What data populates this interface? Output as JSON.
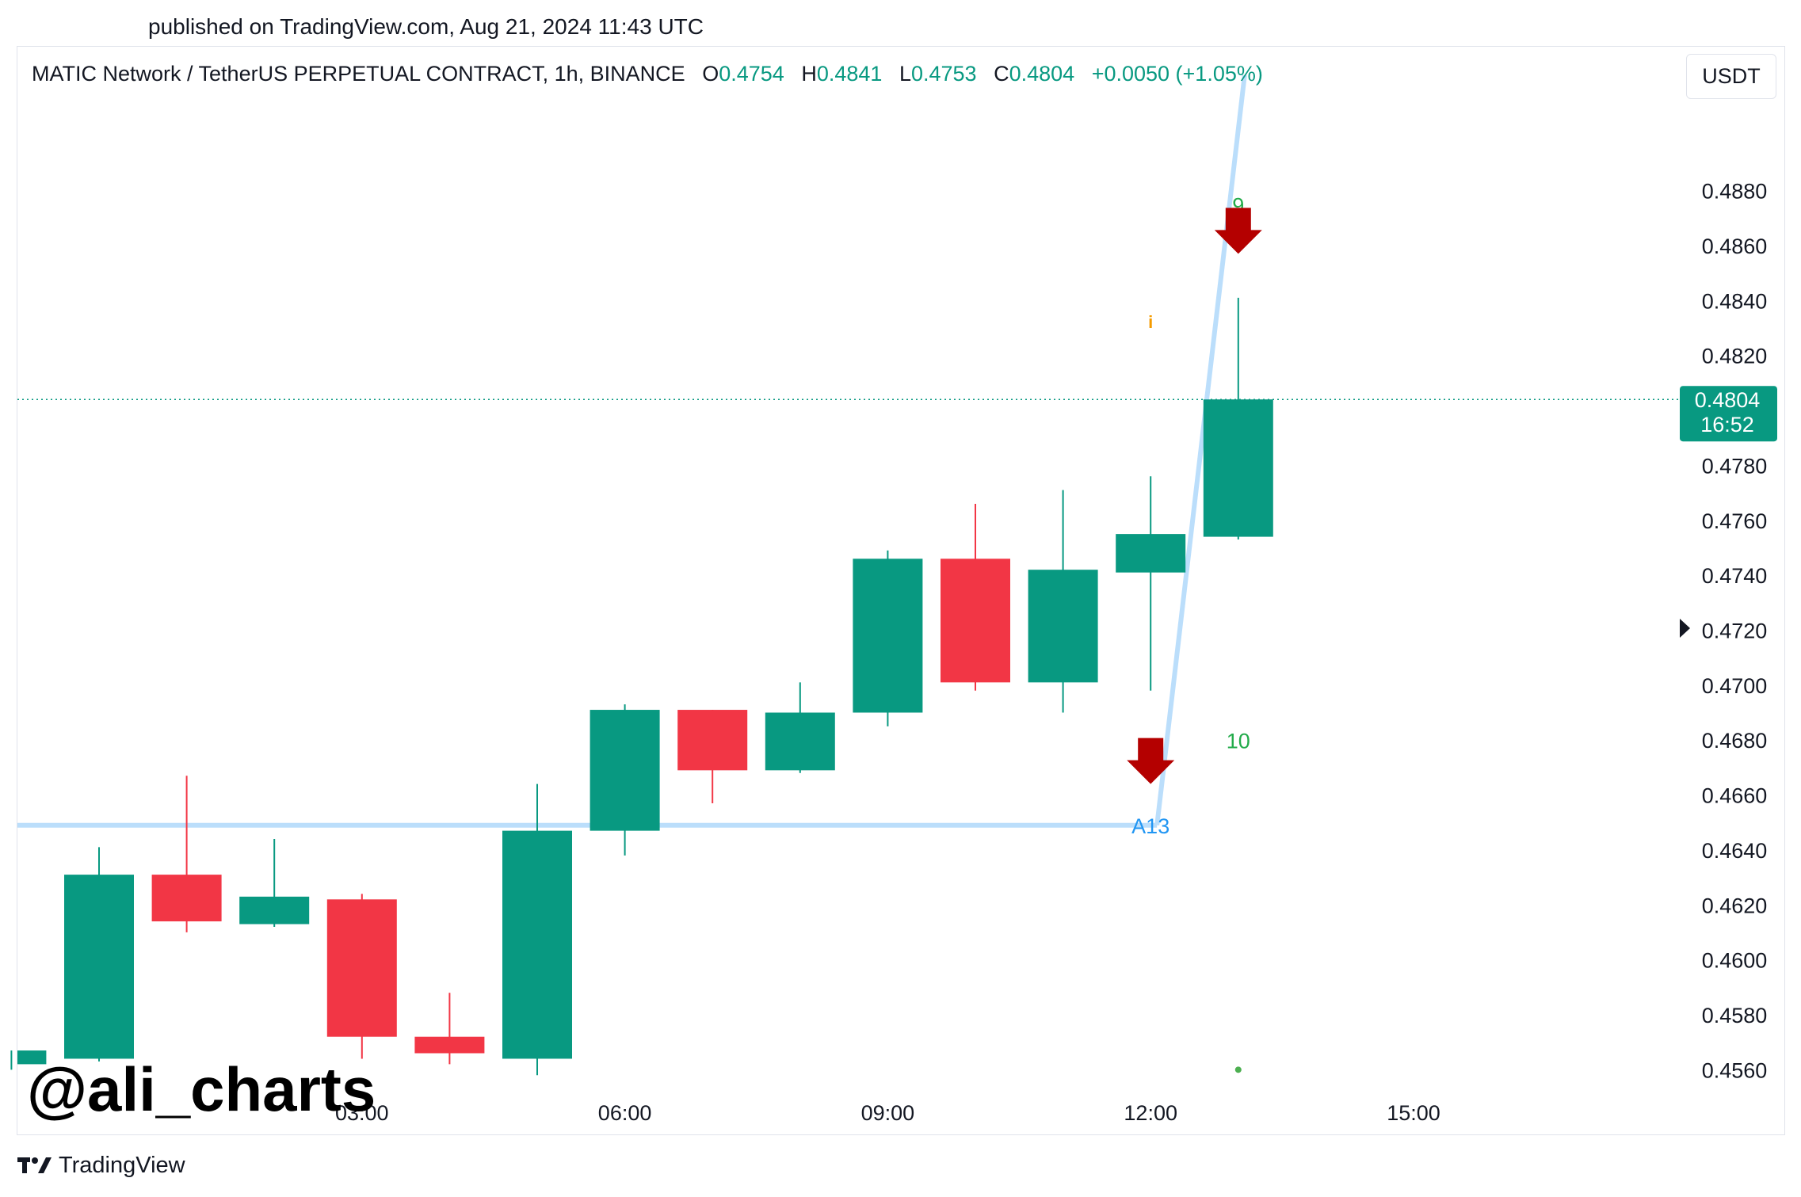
{
  "header": {
    "published": "published on TradingView.com, Aug 21, 2024 11:43 UTC"
  },
  "legend": {
    "symbol": "MATIC Network / TetherUS PERPETUAL CONTRACT, 1h, BINANCE",
    "open_label": "O",
    "open": "0.4754",
    "high_label": "H",
    "high": "0.4841",
    "low_label": "L",
    "low": "0.4753",
    "close_label": "C",
    "close": "0.4804",
    "change": "+0.0050 (+1.05%)"
  },
  "toolbar": {
    "currency": "USDT"
  },
  "price_tag": {
    "price": "0.4804",
    "countdown": "16:52",
    "color": "#089981"
  },
  "watermark": "@ali_charts",
  "brand": {
    "name": "TradingView"
  },
  "colors": {
    "up": "#089981",
    "down": "#f23645",
    "trendline": "#bbdefb",
    "arrow": "#b40000"
  },
  "chart_data": {
    "type": "candlestick",
    "ylim": [
      0.455,
      0.4922
    ],
    "y_ticks": [
      "0.4880",
      "0.4860",
      "0.4840",
      "0.4820",
      "0.4780",
      "0.4760",
      "0.4740",
      "0.4720",
      "0.4700",
      "0.4680",
      "0.4660",
      "0.4640",
      "0.4620",
      "0.4600",
      "0.4580",
      "0.4560"
    ],
    "x_tick_labels": [
      "03:00",
      "06:00",
      "09:00",
      "12:00",
      "15:00"
    ],
    "x_tick_hours": [
      3,
      6,
      9,
      12,
      15
    ],
    "candles": [
      {
        "hour": -1,
        "open": 0.4562,
        "high": 0.4567,
        "low": 0.456,
        "close": 0.4567
      },
      {
        "hour": 0,
        "open": 0.4564,
        "high": 0.4641,
        "low": 0.4563,
        "close": 0.4631
      },
      {
        "hour": 1,
        "open": 0.4631,
        "high": 0.4667,
        "low": 0.461,
        "close": 0.4614
      },
      {
        "hour": 2,
        "open": 0.4613,
        "high": 0.4644,
        "low": 0.4612,
        "close": 0.4623
      },
      {
        "hour": 3,
        "open": 0.4622,
        "high": 0.4624,
        "low": 0.4564,
        "close": 0.4572
      },
      {
        "hour": 4,
        "open": 0.4572,
        "high": 0.4588,
        "low": 0.4562,
        "close": 0.4566
      },
      {
        "hour": 5,
        "open": 0.4564,
        "high": 0.4664,
        "low": 0.4558,
        "close": 0.4647
      },
      {
        "hour": 6,
        "open": 0.4647,
        "high": 0.4693,
        "low": 0.4638,
        "close": 0.4691
      },
      {
        "hour": 7,
        "open": 0.4691,
        "high": 0.4691,
        "low": 0.4657,
        "close": 0.4669
      },
      {
        "hour": 8,
        "open": 0.4669,
        "high": 0.4701,
        "low": 0.4668,
        "close": 0.469
      },
      {
        "hour": 9,
        "open": 0.469,
        "high": 0.4749,
        "low": 0.4685,
        "close": 0.4746
      },
      {
        "hour": 10,
        "open": 0.4746,
        "high": 0.4766,
        "low": 0.4698,
        "close": 0.4701
      },
      {
        "hour": 11,
        "open": 0.4701,
        "high": 0.4771,
        "low": 0.469,
        "close": 0.4742
      },
      {
        "hour": 12,
        "open": 0.4741,
        "high": 0.4776,
        "low": 0.4698,
        "close": 0.4755
      },
      {
        "hour": 13,
        "open": 0.4754,
        "high": 0.4841,
        "low": 0.4753,
        "close": 0.4804
      }
    ],
    "last_price": 0.4804,
    "support_level": 0.4649,
    "trendline": [
      {
        "hour": 12,
        "price": 0.4649
      },
      {
        "hour": 13,
        "price": 0.4922
      }
    ],
    "annotations": [
      {
        "text": "9",
        "hour": 13,
        "price": 0.4872,
        "color": "#22ab4a"
      },
      {
        "text": "10",
        "hour": 13,
        "price": 0.4677,
        "color": "#22ab4a"
      },
      {
        "text": "A13",
        "hour": 12,
        "price": 0.4646,
        "color": "#2196f3"
      },
      {
        "text": "i",
        "hour": 12,
        "price": 0.483,
        "color": "#f59b00"
      }
    ],
    "arrows": [
      {
        "hour": 13,
        "price": 0.4857
      },
      {
        "hour": 12,
        "price": 0.4664
      }
    ],
    "dot": {
      "hour": 13,
      "price": 0.456,
      "color": "#4caf50"
    }
  }
}
